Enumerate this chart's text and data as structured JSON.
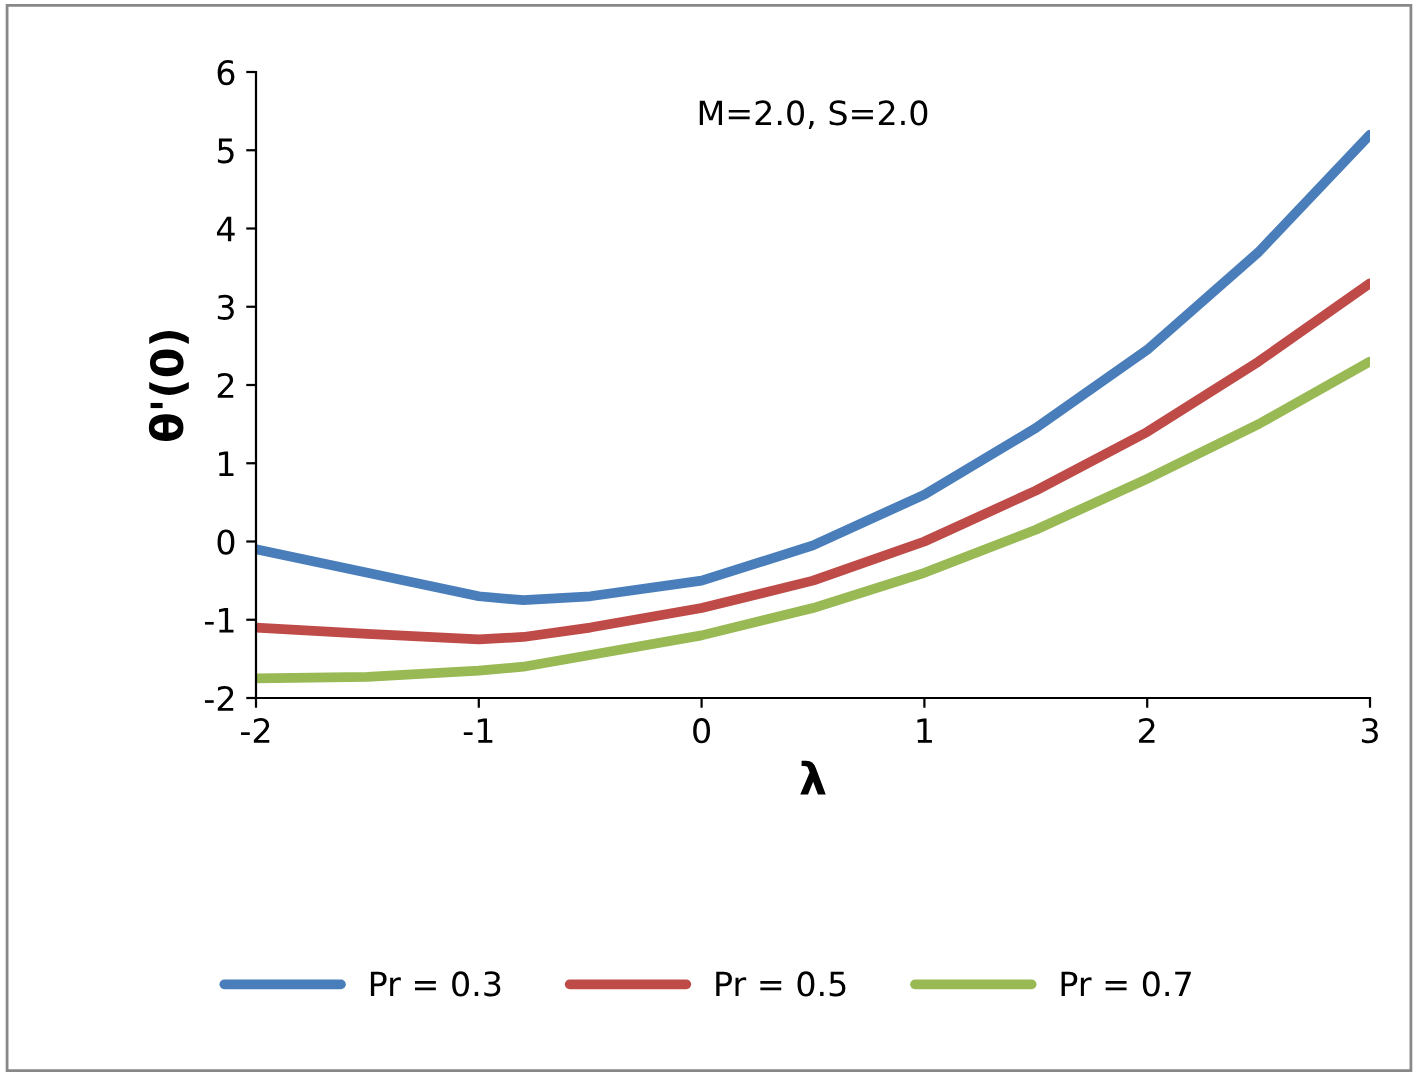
{
  "chart_data": {
    "type": "line",
    "xlabel": "λ",
    "ylabel": "θ'(0)",
    "annotations": [
      "M=2.0, S=2.0"
    ],
    "x": [
      -2,
      -1.5,
      -1,
      -0.8,
      -0.5,
      0,
      0.5,
      1,
      1.5,
      2,
      2.5,
      3
    ],
    "series": [
      {
        "name": "Pr = 0.3",
        "color": "#4a7ebb",
        "values": [
          -0.1,
          -0.4,
          -0.7,
          -0.75,
          -0.7,
          -0.5,
          -0.05,
          0.6,
          1.45,
          2.45,
          3.7,
          5.2
        ]
      },
      {
        "name": "Pr = 0.5",
        "color": "#be4b48",
        "values": [
          -1.1,
          -1.18,
          -1.25,
          -1.22,
          -1.1,
          -0.85,
          -0.5,
          0.0,
          0.65,
          1.4,
          2.3,
          3.3
        ]
      },
      {
        "name": "Pr = 0.7",
        "color": "#98b954",
        "values": [
          -1.75,
          -1.73,
          -1.65,
          -1.6,
          -1.45,
          -1.2,
          -0.85,
          -0.4,
          0.15,
          0.8,
          1.5,
          2.3
        ]
      }
    ],
    "xlim": [
      -2,
      3
    ],
    "xticks": [
      -2,
      -1,
      0,
      1,
      2,
      3
    ],
    "ylim": [
      -2,
      6
    ],
    "yticks": [
      -2,
      -1,
      0,
      1,
      2,
      3,
      4,
      5,
      6
    ],
    "grid": false,
    "legend": "bottom",
    "marker": "none",
    "line_style": "solid"
  }
}
